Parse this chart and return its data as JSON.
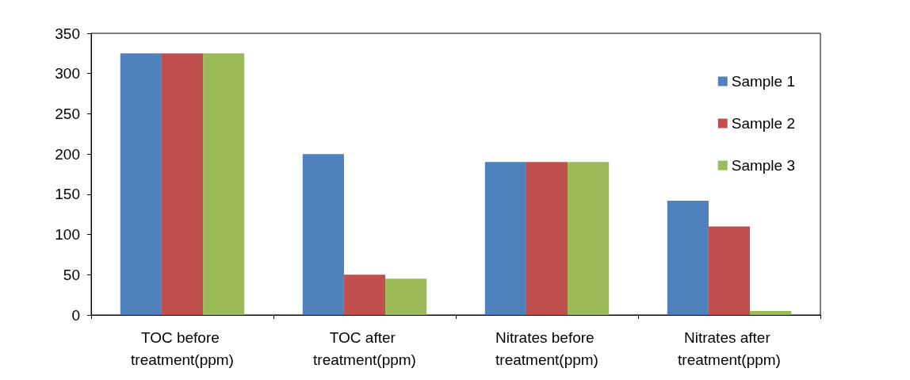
{
  "chart_data": {
    "type": "bar",
    "categories": [
      "TOC before treatment(ppm)",
      "TOC after treatment(ppm)",
      "Nitrates before treatment(ppm)",
      "Nitrates after treatment(ppm)"
    ],
    "series": [
      {
        "name": "Sample 1",
        "color": "#4f81bd",
        "values": [
          325,
          200,
          190,
          142
        ]
      },
      {
        "name": "Sample 2",
        "color": "#c0504d",
        "values": [
          325,
          50,
          190,
          110
        ]
      },
      {
        "name": "Sample 3",
        "color": "#9bbb59",
        "values": [
          325,
          45,
          190,
          5
        ]
      }
    ],
    "ylim": [
      0,
      350
    ],
    "yticks": [
      0,
      50,
      100,
      150,
      200,
      250,
      300,
      350
    ],
    "grid": false,
    "legend": "right"
  }
}
